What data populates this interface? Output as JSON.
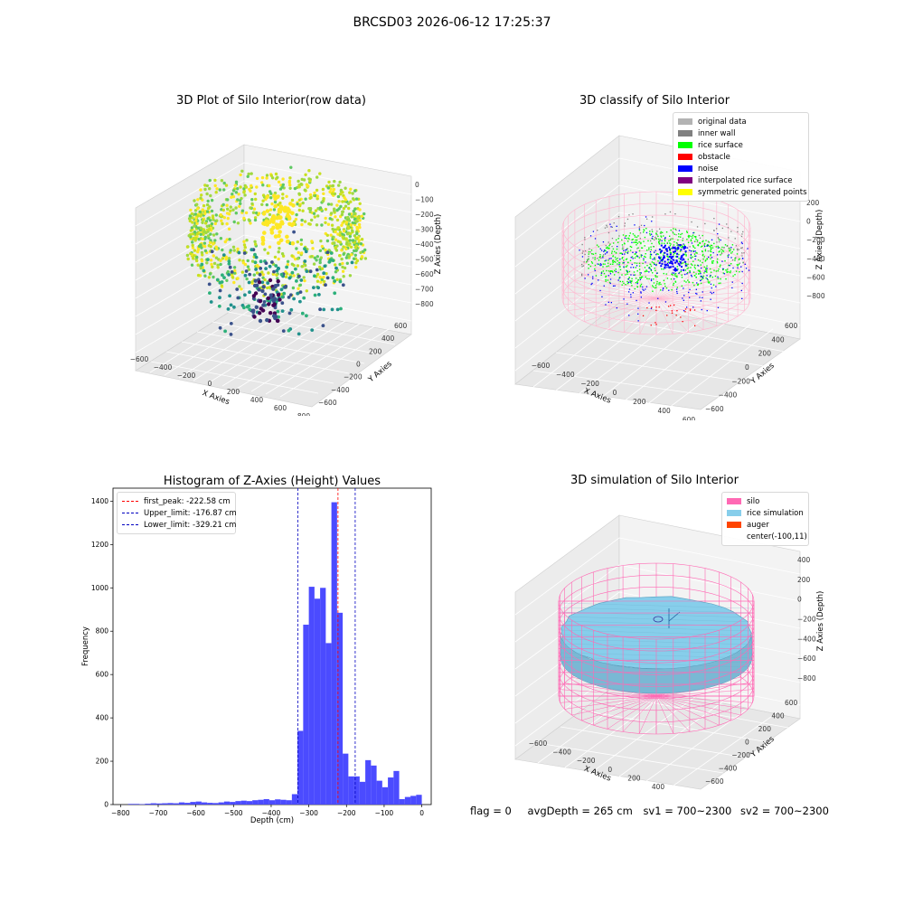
{
  "suptitle": "BRCSD03 2026-06-12 17:25:37",
  "panels": {
    "raw": {
      "title": "3D Plot of Silo Interior(row data)",
      "xlabel": "X Axies",
      "ylabel": "Y Axies",
      "zlabel": "Z Axies (Depth)",
      "xticks": [
        "−600",
        "−400",
        "−200",
        "0",
        "200",
        "400",
        "600",
        "800"
      ],
      "yticks": [
        "−600",
        "−400",
        "−200",
        "0",
        "200",
        "400",
        "600"
      ],
      "zticks": [
        "0",
        "−100",
        "−200",
        "−300",
        "−400",
        "−500",
        "−600",
        "−700",
        "−800"
      ]
    },
    "classify": {
      "title": "3D classify of Silo Interior",
      "xlabel": "X Axies",
      "ylabel": "Y Axies",
      "zlabel": "Z Axies (Depth)",
      "xticks": [
        "−600",
        "−400",
        "−200",
        "0",
        "200",
        "400",
        "600"
      ],
      "yticks": [
        "−600",
        "−400",
        "−200",
        "0",
        "200",
        "400",
        "600"
      ],
      "zticks": [
        "200",
        "0",
        "−200",
        "−400",
        "−600",
        "−800"
      ],
      "legend": [
        {
          "label": "original data",
          "color": "#b3b3b3"
        },
        {
          "label": "inner wall",
          "color": "#808080"
        },
        {
          "label": "rice surface",
          "color": "#00ff00"
        },
        {
          "label": "obstacle",
          "color": "#ff0000"
        },
        {
          "label": "noise",
          "color": "#0000ff"
        },
        {
          "label": "interpolated rice surface",
          "color": "#800080"
        },
        {
          "label": "symmetric generated points",
          "color": "#ffff00"
        }
      ]
    },
    "simulation": {
      "title": "3D simulation of Silo Interior",
      "xlabel": "X Axies",
      "ylabel": "Y Axies",
      "zlabel": "Z Axies (Depth)",
      "xticks": [
        "−600",
        "−400",
        "−200",
        "0",
        "200",
        "400"
      ],
      "yticks": [
        "−600",
        "−400",
        "−200",
        "0",
        "200",
        "400",
        "600"
      ],
      "zticks": [
        "400",
        "200",
        "0",
        "−200",
        "−400",
        "−600",
        "−800"
      ],
      "legend": [
        {
          "label": "silo",
          "color": "#ff69b4"
        },
        {
          "label": "rice simulation",
          "color": "#87ceeb"
        },
        {
          "label": "auger",
          "color": "#ff4500"
        },
        {
          "label": "center(-100,11)",
          "color": ""
        }
      ]
    }
  },
  "footer": {
    "flag": "flag = 0",
    "avg_depth": "avgDepth = 265 cm",
    "sv1": "sv1 = 700~2300",
    "sv2": "sv2 = 700~2300"
  },
  "colors": {
    "bars": "#4b4bff",
    "first_peak": "#ff0000",
    "limits": "#0000c0"
  },
  "chart_data": [
    {
      "type": "scatter",
      "title": "3D Plot of Silo Interior(row data)",
      "projection": "3d",
      "xlabel": "X Axies",
      "ylabel": "Y Axies",
      "zlabel": "Z Axies (Depth)",
      "xlim": [
        -600,
        800
      ],
      "ylim": [
        -600,
        600
      ],
      "zlim": [
        -800,
        0
      ],
      "colormap": "viridis"
    },
    {
      "type": "scatter",
      "title": "3D classify of Silo Interior",
      "projection": "3d",
      "xlabel": "X Axies",
      "ylabel": "Y Axies",
      "zlabel": "Z Axies (Depth)",
      "xlim": [
        -600,
        600
      ],
      "ylim": [
        -600,
        600
      ],
      "zlim": [
        -800,
        200
      ],
      "series": [
        {
          "name": "original data"
        },
        {
          "name": "inner wall"
        },
        {
          "name": "rice surface"
        },
        {
          "name": "obstacle"
        },
        {
          "name": "noise"
        },
        {
          "name": "interpolated rice surface"
        },
        {
          "name": "symmetric generated points"
        }
      ],
      "legend_position": "top-right"
    },
    {
      "type": "bar",
      "title": "Histogram of Z-Axies (Height) Values",
      "xlabel": "Depth (cm)",
      "ylabel": "Frequency",
      "xlim": [
        -820,
        25
      ],
      "ylim": [
        0,
        1460
      ],
      "xticks": [
        -800,
        -700,
        -600,
        -500,
        -400,
        -300,
        -200,
        -100,
        0
      ],
      "yticks": [
        0,
        200,
        400,
        600,
        800,
        1000,
        1200,
        1400
      ],
      "bin_width": 15,
      "bin_left_edges": [
        -780,
        -765,
        -750,
        -735,
        -720,
        -705,
        -690,
        -675,
        -660,
        -645,
        -630,
        -615,
        -600,
        -585,
        -570,
        -555,
        -540,
        -525,
        -510,
        -495,
        -480,
        -465,
        -450,
        -435,
        -420,
        -405,
        -390,
        -375,
        -360,
        -345,
        -330,
        -315,
        -300,
        -285,
        -270,
        -255,
        -240,
        -225,
        -210,
        -195,
        -180,
        -165,
        -150,
        -135,
        -120,
        -105,
        -90,
        -75,
        -60,
        -45,
        -30,
        -15
      ],
      "values": [
        3,
        3,
        2,
        4,
        6,
        5,
        6,
        7,
        6,
        10,
        8,
        12,
        14,
        10,
        8,
        7,
        10,
        14,
        12,
        16,
        18,
        16,
        20,
        22,
        25,
        20,
        24,
        22,
        20,
        48,
        340,
        830,
        1005,
        950,
        1000,
        745,
        1395,
        885,
        235,
        130,
        130,
        105,
        205,
        180,
        110,
        80,
        125,
        155,
        25,
        35,
        40,
        45
      ],
      "lines": [
        {
          "label": "first_peak: -222.58 cm",
          "x": -222.58,
          "color": "#ff0000"
        },
        {
          "label": "Upper_limit: -176.87 cm",
          "x": -176.87,
          "color": "#0000c0"
        },
        {
          "label": "Lower_limit: -329.21 cm",
          "x": -329.21,
          "color": "#0000c0"
        }
      ],
      "legend_position": "top-left"
    },
    {
      "type": "surface",
      "title": "3D simulation of Silo Interior",
      "projection": "3d",
      "xlabel": "X Axies",
      "ylabel": "Y Axies",
      "zlabel": "Z Axies (Depth)",
      "xlim": [
        -700,
        500
      ],
      "ylim": [
        -700,
        700
      ],
      "zlim": [
        -900,
        400
      ],
      "series": [
        {
          "name": "silo"
        },
        {
          "name": "rice simulation"
        },
        {
          "name": "auger"
        },
        {
          "name": "center(-100,11)"
        }
      ],
      "legend_position": "top-right"
    }
  ]
}
